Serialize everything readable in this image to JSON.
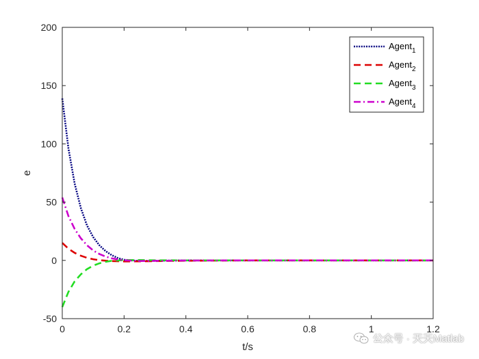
{
  "chart_data": {
    "type": "line",
    "title": "",
    "xlabel": "t/s",
    "ylabel": "e",
    "xlim": [
      0,
      1.2
    ],
    "ylim": [
      -50,
      200
    ],
    "xticks": [
      0,
      0.2,
      0.4,
      0.6,
      0.8,
      1,
      1.2
    ],
    "xtick_labels": [
      "0",
      "0.2",
      "0.4",
      "0.6",
      "0.8",
      "1",
      "1.2"
    ],
    "yticks": [
      -50,
      0,
      50,
      100,
      150,
      200
    ],
    "ytick_labels": [
      "-50",
      "0",
      "50",
      "100",
      "150",
      "200"
    ],
    "grid": false,
    "legend_position": "top-right",
    "series": [
      {
        "name": "Agent",
        "subscript": "1",
        "color": "#000080",
        "style": "dotted",
        "x": [
          0,
          0.02,
          0.04,
          0.06,
          0.08,
          0.1,
          0.12,
          0.14,
          0.16,
          0.18,
          0.2,
          0.25,
          0.3,
          0.4,
          0.6,
          0.8,
          1.0,
          1.2
        ],
        "y": [
          139,
          96,
          66,
          45,
          30,
          20,
          13,
          8,
          4.5,
          2,
          0.5,
          -0.5,
          -0.3,
          0,
          0,
          0,
          0,
          0
        ]
      },
      {
        "name": "Agent",
        "subscript": "2",
        "color": "#dd0000",
        "style": "dashed",
        "x": [
          0,
          0.02,
          0.04,
          0.06,
          0.08,
          0.1,
          0.12,
          0.15,
          0.2,
          0.25,
          0.3,
          0.4,
          0.6,
          0.8,
          1.0,
          1.2
        ],
        "y": [
          15,
          10,
          6.5,
          4,
          2.2,
          1,
          0.2,
          -0.5,
          -0.9,
          -0.8,
          -0.6,
          -0.3,
          0,
          0,
          0,
          0
        ]
      },
      {
        "name": "Agent",
        "subscript": "3",
        "color": "#22dd22",
        "style": "dashed",
        "x": [
          0,
          0.02,
          0.04,
          0.06,
          0.08,
          0.1,
          0.12,
          0.14,
          0.16,
          0.2,
          0.25,
          0.3,
          0.4,
          0.6,
          0.8,
          1.0,
          1.2
        ],
        "y": [
          -40,
          -27,
          -18,
          -12,
          -7.5,
          -4.5,
          -2.5,
          -1.2,
          -0.4,
          0.3,
          0.3,
          0.1,
          0,
          0,
          0,
          0,
          0
        ]
      },
      {
        "name": "Agent",
        "subscript": "4",
        "color": "#cc00cc",
        "style": "dashdot",
        "x": [
          0,
          0.02,
          0.04,
          0.06,
          0.08,
          0.1,
          0.12,
          0.14,
          0.16,
          0.18,
          0.2,
          0.25,
          0.3,
          0.4,
          0.6,
          0.8,
          1.0,
          1.2
        ],
        "y": [
          54,
          38,
          27,
          19,
          13,
          8.5,
          5.5,
          3.3,
          1.8,
          0.8,
          0.1,
          -0.5,
          -0.4,
          -0.1,
          0,
          0,
          0,
          0
        ]
      }
    ]
  },
  "watermark": {
    "text": "公众号 · 天天Matlab",
    "icon": "wechat-icon"
  }
}
